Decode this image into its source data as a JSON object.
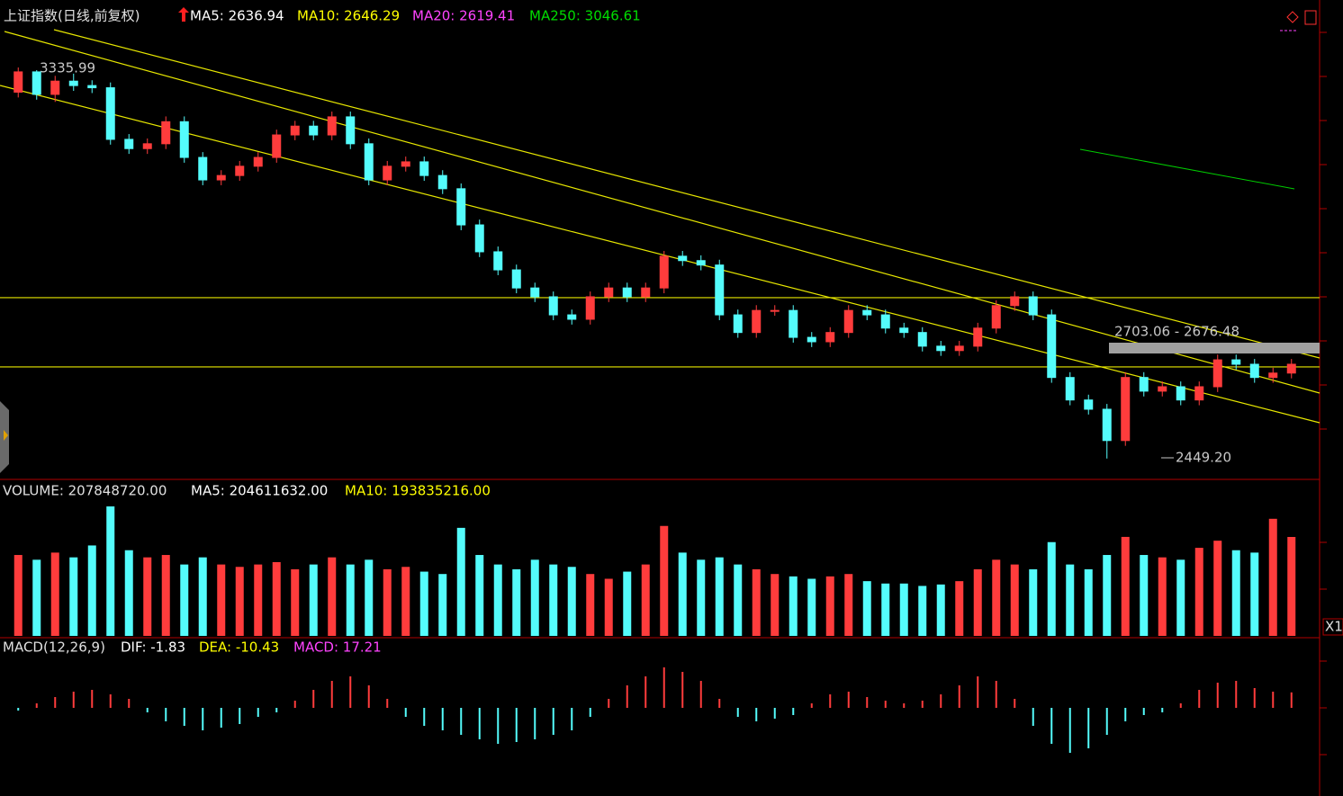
{
  "chart_data": [
    {
      "type": "candlestick",
      "title": "上证指数(日线,前复权)",
      "indicators": [
        {
          "label": "MA5: 2636.94",
          "color": "#ffffff"
        },
        {
          "label": "MA10: 2646.29",
          "color": "#ffff00"
        },
        {
          "label": "MA20: 2619.41",
          "color": "#ff44ff"
        },
        {
          "label": "MA250: 3046.61",
          "color": "#00dd00"
        }
      ],
      "open": [
        3280,
        3326,
        3275,
        3305,
        3295,
        3290,
        3173,
        3152,
        3163,
        3213,
        3132,
        3081,
        3091,
        3112,
        3132,
        3183,
        3203,
        3183,
        3224,
        3163,
        3081,
        3112,
        3122,
        3091,
        3061,
        2979,
        2918,
        2877,
        2836,
        2816,
        2775,
        2765,
        2816,
        2836,
        2816,
        2836,
        2908,
        2898,
        2888,
        2775,
        2735,
        2785,
        2785,
        2724,
        2714,
        2735,
        2785,
        2775,
        2745,
        2735,
        2704,
        2694,
        2704,
        2745,
        2796,
        2816,
        2775,
        2633,
        2582,
        2561,
        2490,
        2633,
        2602,
        2612,
        2582,
        2612,
        2673,
        2663,
        2633,
        2643
      ],
      "high": [
        3335.99,
        3330,
        3317,
        3322,
        3307,
        3302,
        3185,
        3175,
        3225,
        3225,
        3144,
        3103,
        3124,
        3144,
        3195,
        3215,
        3215,
        3236,
        3236,
        3175,
        3124,
        3134,
        3134,
        3103,
        3073,
        2991,
        2930,
        2889,
        2848,
        2828,
        2787,
        2828,
        2848,
        2848,
        2848,
        2920,
        2920,
        2910,
        2900,
        2787,
        2797,
        2797,
        2797,
        2736,
        2747,
        2797,
        2797,
        2787,
        2757,
        2747,
        2716,
        2716,
        2757,
        2808,
        2828,
        2828,
        2787,
        2645,
        2594,
        2573,
        2645,
        2645,
        2624,
        2624,
        2624,
        2685,
        2685,
        2675,
        2655,
        2675
      ],
      "low": [
        3268,
        3263,
        3258,
        3283,
        3278,
        3161,
        3140,
        3140,
        3151,
        3120,
        3069,
        3069,
        3079,
        3100,
        3120,
        3171,
        3171,
        3171,
        3151,
        3069,
        3069,
        3100,
        3079,
        3049,
        2967,
        2906,
        2865,
        2824,
        2804,
        2763,
        2753,
        2753,
        2804,
        2804,
        2804,
        2824,
        2886,
        2876,
        2763,
        2723,
        2723,
        2773,
        2712,
        2702,
        2702,
        2723,
        2763,
        2733,
        2723,
        2692,
        2682,
        2682,
        2692,
        2733,
        2784,
        2763,
        2621,
        2570,
        2549,
        2449.2,
        2478,
        2590,
        2590,
        2570,
        2570,
        2600,
        2651,
        2621,
        2621,
        2631
      ],
      "close": [
        3326,
        3275,
        3305,
        3295,
        3290,
        3173,
        3152,
        3163,
        3213,
        3132,
        3081,
        3091,
        3112,
        3132,
        3183,
        3203,
        3183,
        3224,
        3163,
        3081,
        3112,
        3122,
        3091,
        3061,
        2979,
        2918,
        2877,
        2836,
        2816,
        2775,
        2765,
        2816,
        2836,
        2816,
        2836,
        2908,
        2898,
        2888,
        2775,
        2735,
        2785,
        2785,
        2724,
        2714,
        2735,
        2785,
        2775,
        2745,
        2735,
        2704,
        2694,
        2704,
        2745,
        2796,
        2816,
        2775,
        2633,
        2582,
        2561,
        2490,
        2633,
        2602,
        2612,
        2582,
        2612,
        2673,
        2663,
        2633,
        2643,
        2663
      ],
      "up_color": "#ff3c3c",
      "down_color": "#54fcfc",
      "ylim": [
        2408,
        3489
      ],
      "hlines": [
        2814,
        2657
      ],
      "annotations": [
        "3335.99",
        "2703.06 - 2676.48",
        "2449.20"
      ]
    },
    {
      "type": "volume",
      "title": "VOLUME: 207848720.00",
      "indicators": [
        {
          "label": "MA5: 204611632.00",
          "color": "#ffffff"
        },
        {
          "label": "MA10: 193835216.00",
          "color": "#ffff00"
        }
      ],
      "values": [
        170000000.0,
        160000000.0,
        175000000.0,
        165000000.0,
        190000000.0,
        272000000.0,
        180000000.0,
        165000000.0,
        170000000.0,
        150000000.0,
        165000000.0,
        150000000.0,
        145000000.0,
        150000000.0,
        155000000.0,
        140000000.0,
        150000000.0,
        165000000.0,
        150000000.0,
        160000000.0,
        140000000.0,
        145000000.0,
        135000000.0,
        130000000.0,
        227000000.0,
        170000000.0,
        150000000.0,
        140000000.0,
        160000000.0,
        150000000.0,
        145000000.0,
        130000000.0,
        120000000.0,
        135000000.0,
        150000000.0,
        231000000.0,
        175000000.0,
        160000000.0,
        165000000.0,
        150000000.0,
        140000000.0,
        130000000.0,
        125000000.0,
        120000000.0,
        125000000.0,
        130000000.0,
        115000000.0,
        110000000.0,
        110000000.0,
        105000000.0,
        108000000.0,
        115000000.0,
        140000000.0,
        160000000.0,
        150000000.0,
        140000000.0,
        197000000.0,
        150000000.0,
        140000000.0,
        170000000.0,
        208000000.0,
        170000000.0,
        165000000.0,
        160000000.0,
        185000000.0,
        200000000.0,
        180000000.0,
        175000000.0,
        246000000.0,
        207848720
      ],
      "ylim": [
        0,
        325000000
      ],
      "scale_label": "X1"
    },
    {
      "type": "macd",
      "title": "MACD(12,26,9)",
      "indicators": [
        {
          "label": "DIF: -1.83",
          "color": "#ffffff"
        },
        {
          "label": "DEA: -10.43",
          "color": "#ffff00"
        },
        {
          "label": "MACD: 17.21",
          "color": "#ff44ff"
        }
      ],
      "values": [
        -3,
        5,
        12,
        18,
        20,
        15,
        10,
        -5,
        -15,
        -20,
        -25,
        -22,
        -18,
        -10,
        -5,
        8,
        20,
        30,
        35,
        25,
        10,
        -10,
        -20,
        -25,
        -30,
        -35,
        -40,
        -38,
        -35,
        -30,
        -25,
        -10,
        10,
        25,
        35,
        45,
        40,
        30,
        10,
        -10,
        -15,
        -12,
        -8,
        5,
        15,
        18,
        12,
        8,
        5,
        8,
        15,
        25,
        35,
        30,
        10,
        -20,
        -40,
        -50,
        -45,
        -30,
        -15,
        -8,
        -5,
        5,
        20,
        28,
        30,
        22,
        18,
        17.21
      ],
      "ylim": [
        -98,
        75
      ]
    }
  ]
}
